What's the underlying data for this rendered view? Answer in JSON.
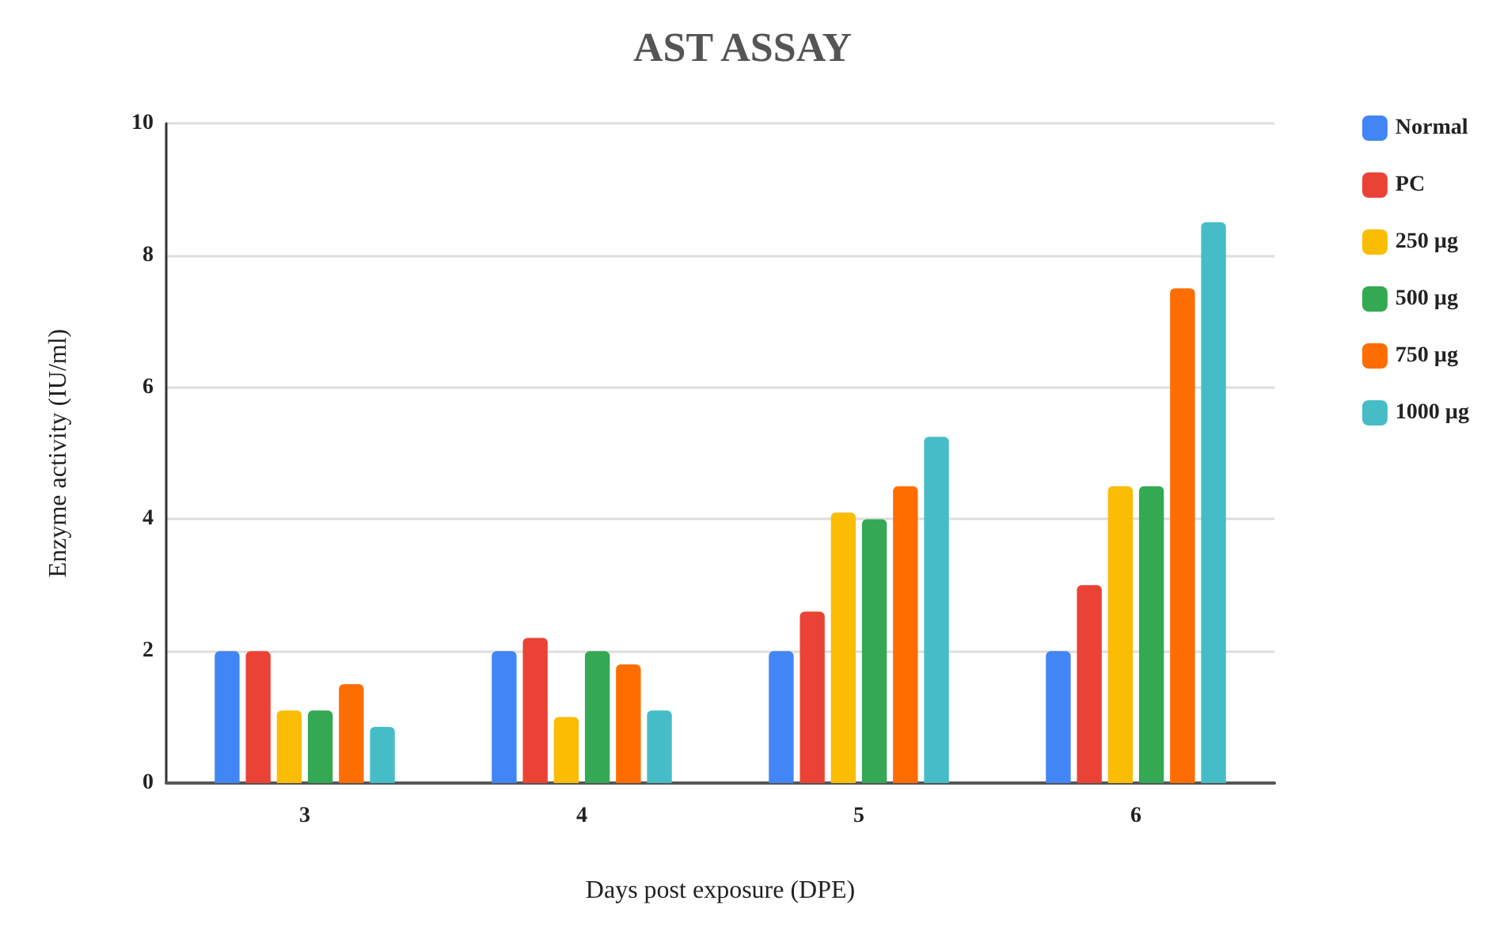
{
  "chart_data": {
    "type": "bar",
    "title": "AST ASSAY",
    "xlabel": "Days post exposure (DPE)",
    "ylabel": "Enzyme activity (IU/ml)",
    "categories": [
      "3",
      "4",
      "5",
      "6"
    ],
    "series": [
      {
        "name": "Normal",
        "color": "#4285f4",
        "values": [
          2,
          2,
          2,
          2
        ]
      },
      {
        "name": "PC",
        "color": "#ea4335",
        "values": [
          2,
          2.2,
          2.6,
          3
        ]
      },
      {
        "name": "250 µg",
        "color": "#fbbc04",
        "values": [
          1.1,
          1,
          4.1,
          4.5
        ]
      },
      {
        "name": "500 µg",
        "color": "#34a853",
        "values": [
          1.1,
          2,
          4,
          4.5
        ]
      },
      {
        "name": "750 µg",
        "color": "#ff6d01",
        "values": [
          1.5,
          1.8,
          4.5,
          7.5
        ]
      },
      {
        "name": "1000 µg",
        "color": "#46bdc6",
        "values": [
          0.85,
          1.1,
          5.25,
          8.5
        ]
      }
    ],
    "ylim": [
      0,
      10
    ],
    "yticks": [
      0,
      2,
      4,
      6,
      8,
      10
    ],
    "grid": "y",
    "legend": "right"
  }
}
